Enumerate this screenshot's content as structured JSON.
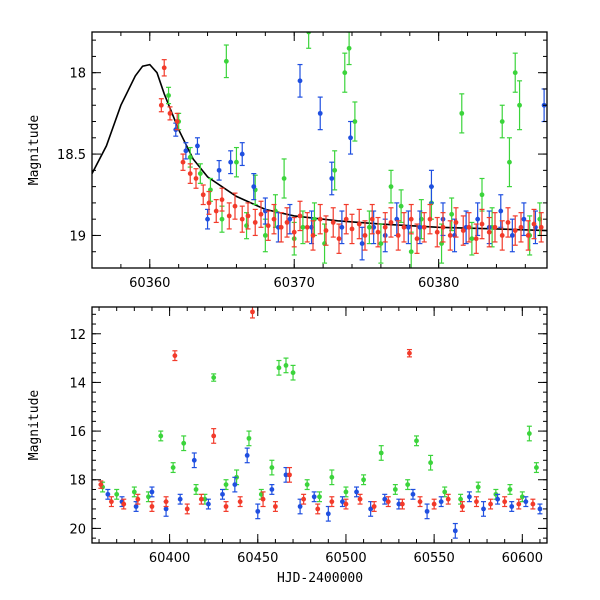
{
  "colors": {
    "green": "#3bd43b",
    "blue": "#1f4fe0",
    "red": "#f23a2a",
    "model": "#000000"
  },
  "chart_data": [
    {
      "type": "scatter",
      "ylabel": "Magnitude",
      "xlabel": "",
      "xlim": [
        60356,
        60387.5
      ],
      "ylim": [
        19.2,
        17.75
      ],
      "y_inverted": true,
      "x_ticks": [
        60360,
        60370,
        60380
      ],
      "y_ticks": [
        18,
        18.5,
        19
      ],
      "x_tick_labels": [
        "60360",
        "60370",
        "60380"
      ],
      "y_tick_labels": [
        "18",
        "18.5",
        "19"
      ],
      "model_curve": {
        "x": [
          60356,
          60357,
          60358,
          60359,
          60359.5,
          60360,
          60360.5,
          60361,
          60362,
          60363,
          60364,
          60366,
          60368,
          60370,
          60373,
          60376,
          60380,
          60384,
          60387.5
        ],
        "y": [
          18.62,
          18.45,
          18.2,
          18.02,
          17.96,
          17.95,
          18.0,
          18.13,
          18.35,
          18.53,
          18.64,
          18.76,
          18.84,
          18.88,
          18.91,
          18.93,
          18.95,
          18.96,
          18.97
        ]
      },
      "series": [
        {
          "color_key": "green",
          "x": [
            60361.3,
            60362,
            60362.8,
            60363.5,
            60364.2,
            60365,
            60365.3,
            60366,
            60366.7,
            60367.3,
            60368,
            60368.7,
            60369.3,
            60370,
            60370.6,
            60371,
            60371.4,
            60372.1,
            60372.8,
            60373.5,
            60373.8,
            60374.2,
            60375.2,
            60376,
            60376.7,
            60377.4,
            60378.1,
            60378.8,
            60379.5,
            60380.2,
            60380.9,
            60381.6,
            60382.3,
            60383,
            60383.7,
            60384.4,
            60384.9,
            60385.3,
            60385.6,
            60386.3,
            60387
          ],
          "y": [
            18.14,
            18.3,
            18.52,
            18.62,
            18.72,
            18.9,
            17.93,
            18.55,
            18.94,
            18.72,
            19.0,
            18.85,
            18.65,
            19.02,
            18.95,
            17.75,
            18.9,
            19.05,
            18.6,
            18.0,
            17.85,
            18.3,
            18.95,
            19.05,
            18.7,
            18.82,
            19.1,
            18.9,
            18.8,
            19.05,
            18.87,
            18.25,
            19.02,
            18.75,
            18.95,
            18.3,
            18.55,
            18.0,
            18.2,
            19.0,
            18.9
          ],
          "err": [
            0.05,
            0.05,
            0.06,
            0.06,
            0.07,
            0.08,
            0.1,
            0.09,
            0.08,
            0.09,
            0.1,
            0.1,
            0.12,
            0.1,
            0.1,
            0.1,
            0.1,
            0.12,
            0.12,
            0.12,
            0.1,
            0.12,
            0.1,
            0.12,
            0.1,
            0.1,
            0.12,
            0.12,
            0.1,
            0.12,
            0.1,
            0.12,
            0.1,
            0.1,
            0.12,
            0.1,
            0.15,
            0.12,
            0.15,
            0.12,
            0.1
          ]
        },
        {
          "color_key": "blue",
          "x": [
            60361.8,
            60362.5,
            60363.3,
            60364,
            60364.8,
            60365.6,
            60366.4,
            60367.2,
            60368,
            60368.9,
            60369.7,
            60370.4,
            60371.2,
            60371.8,
            60372.6,
            60373.3,
            60373.9,
            60374.7,
            60375.5,
            60376.3,
            60377.1,
            60377.9,
            60378.7,
            60379.5,
            60380.3,
            60381.1,
            60381.9,
            60382.7,
            60383.5,
            60384.3,
            60385.1,
            60385.9,
            60386.7,
            60387.3
          ],
          "y": [
            18.35,
            18.48,
            18.45,
            18.9,
            18.6,
            18.55,
            18.5,
            18.7,
            18.85,
            18.95,
            18.9,
            18.05,
            18.95,
            18.25,
            18.65,
            18.95,
            18.4,
            19.05,
            18.95,
            19.0,
            18.9,
            18.95,
            18.95,
            18.7,
            18.9,
            19.0,
            18.95,
            18.9,
            18.95,
            18.85,
            19.0,
            18.9,
            18.95,
            18.2
          ],
          "err": [
            0.04,
            0.05,
            0.05,
            0.06,
            0.06,
            0.07,
            0.07,
            0.08,
            0.08,
            0.09,
            0.09,
            0.1,
            0.1,
            0.1,
            0.1,
            0.1,
            0.1,
            0.1,
            0.1,
            0.1,
            0.1,
            0.1,
            0.1,
            0.1,
            0.1,
            0.1,
            0.1,
            0.1,
            0.1,
            0.1,
            0.1,
            0.1,
            0.1,
            0.1
          ]
        },
        {
          "color_key": "red",
          "x": [
            60360.8,
            60361,
            60361.4,
            60361.9,
            60362.3,
            60362.8,
            60363.2,
            60363.7,
            60364.1,
            60364.6,
            60365,
            60365.5,
            60365.9,
            60366.4,
            60366.8,
            60367.3,
            60367.7,
            60368.2,
            60368.6,
            60369.1,
            60369.5,
            60370,
            60370.4,
            60370.9,
            60371.3,
            60371.8,
            60372.2,
            60372.7,
            60373.1,
            60373.6,
            60374,
            60374.5,
            60374.9,
            60375.4,
            60375.8,
            60376.3,
            60376.7,
            60377.2,
            60377.6,
            60378.1,
            60378.5,
            60379,
            60379.4,
            60379.9,
            60380.3,
            60380.8,
            60381.2,
            60381.7,
            60382.1,
            60382.6,
            60383,
            60383.5,
            60383.9,
            60384.4,
            60384.8,
            60385.3,
            60385.7,
            60386.2,
            60386.6,
            60387.1
          ],
          "y": [
            18.2,
            17.97,
            18.25,
            18.3,
            18.55,
            18.62,
            18.65,
            18.75,
            18.8,
            18.85,
            18.78,
            18.88,
            18.82,
            18.9,
            18.88,
            18.92,
            18.87,
            18.94,
            18.9,
            18.95,
            18.92,
            18.98,
            18.88,
            18.95,
            19.0,
            18.9,
            18.97,
            18.92,
            19.02,
            18.9,
            18.96,
            18.93,
            19.0,
            18.9,
            18.98,
            18.95,
            18.92,
            19.0,
            18.95,
            18.9,
            19.02,
            18.95,
            18.9,
            18.98,
            18.95,
            19.0,
            18.92,
            18.97,
            18.95,
            19.02,
            18.93,
            18.98,
            18.95,
            19.0,
            18.92,
            18.97,
            18.95,
            19.0,
            18.93,
            18.95
          ],
          "err": [
            0.04,
            0.05,
            0.04,
            0.05,
            0.05,
            0.06,
            0.06,
            0.06,
            0.07,
            0.07,
            0.07,
            0.08,
            0.08,
            0.08,
            0.08,
            0.08,
            0.08,
            0.09,
            0.09,
            0.09,
            0.09,
            0.09,
            0.09,
            0.09,
            0.09,
            0.09,
            0.09,
            0.09,
            0.09,
            0.09,
            0.09,
            0.09,
            0.09,
            0.09,
            0.09,
            0.09,
            0.09,
            0.09,
            0.09,
            0.09,
            0.09,
            0.09,
            0.09,
            0.09,
            0.09,
            0.09,
            0.09,
            0.09,
            0.09,
            0.09,
            0.09,
            0.09,
            0.09,
            0.09,
            0.09,
            0.09,
            0.09,
            0.09,
            0.09,
            0.09
          ]
        }
      ]
    },
    {
      "type": "scatter",
      "ylabel": "Magnitude",
      "xlabel": "HJD-2400000",
      "xlim": [
        60356,
        60614
      ],
      "ylim": [
        20.6,
        10.9
      ],
      "y_inverted": true,
      "x_ticks": [
        60400,
        60450,
        60500,
        60550,
        60600
      ],
      "y_ticks": [
        12,
        14,
        16,
        18,
        20
      ],
      "x_tick_labels": [
        "60400",
        "60450",
        "60500",
        "60550",
        "60600"
      ],
      "y_tick_labels": [
        "12",
        "14",
        "16",
        "18",
        "20"
      ],
      "series": [
        {
          "color_key": "green",
          "x": [
            60362,
            60370,
            60380,
            60388,
            60395,
            60402,
            60408,
            60415,
            60420,
            60425,
            60432,
            60438,
            60445,
            60452,
            60458,
            60462,
            60466,
            60470,
            60478,
            60485,
            60492,
            60500,
            60510,
            60520,
            60528,
            60535,
            60540,
            60548,
            60556,
            60565,
            60575,
            60585,
            60593,
            60600,
            60604,
            60608
          ],
          "y": [
            18.3,
            18.6,
            18.5,
            18.7,
            16.2,
            17.5,
            16.5,
            18.4,
            18.8,
            13.8,
            18.2,
            17.9,
            16.3,
            18.6,
            17.5,
            13.4,
            13.3,
            13.6,
            18.2,
            18.7,
            17.9,
            18.5,
            18.0,
            16.9,
            18.4,
            18.2,
            16.4,
            17.3,
            18.5,
            18.8,
            18.3,
            18.6,
            18.4,
            18.7,
            16.1,
            17.5
          ],
          "err": [
            0.2,
            0.2,
            0.2,
            0.2,
            0.2,
            0.2,
            0.3,
            0.2,
            0.2,
            0.15,
            0.2,
            0.3,
            0.3,
            0.2,
            0.3,
            0.3,
            0.3,
            0.3,
            0.2,
            0.2,
            0.3,
            0.2,
            0.2,
            0.3,
            0.2,
            0.2,
            0.2,
            0.3,
            0.2,
            0.2,
            0.2,
            0.2,
            0.2,
            0.2,
            0.3,
            0.2
          ]
        },
        {
          "color_key": "blue",
          "x": [
            60365,
            60373,
            60381,
            60390,
            60398,
            60406,
            60414,
            60422,
            60430,
            60437,
            60444,
            60450,
            60458,
            60466,
            60474,
            60482,
            60490,
            60498,
            60506,
            60514,
            60522,
            60530,
            60538,
            60546,
            60554,
            60562,
            60570,
            60578,
            60586,
            60594,
            60602,
            60610
          ],
          "y": [
            18.6,
            18.9,
            19.1,
            18.5,
            19.2,
            18.8,
            17.2,
            19.0,
            18.6,
            18.2,
            17.0,
            19.3,
            18.4,
            17.8,
            19.1,
            18.7,
            19.4,
            18.9,
            18.5,
            19.2,
            18.8,
            19.0,
            18.6,
            19.3,
            18.9,
            20.1,
            18.7,
            19.2,
            18.8,
            19.1,
            18.9,
            19.2
          ],
          "err": [
            0.2,
            0.2,
            0.2,
            0.2,
            0.3,
            0.2,
            0.3,
            0.2,
            0.2,
            0.3,
            0.3,
            0.3,
            0.2,
            0.3,
            0.3,
            0.2,
            0.3,
            0.2,
            0.2,
            0.3,
            0.2,
            0.2,
            0.2,
            0.3,
            0.2,
            0.3,
            0.2,
            0.3,
            0.2,
            0.2,
            0.2,
            0.2
          ]
        },
        {
          "color_key": "red",
          "x": [
            60361,
            60367,
            60374,
            60382,
            60390,
            60398,
            60403,
            60410,
            60418,
            60425,
            60432,
            60440,
            60447,
            60453,
            60460,
            60468,
            60476,
            60484,
            60492,
            60500,
            60508,
            60516,
            60524,
            60532,
            60536,
            60542,
            60550,
            60558,
            60566,
            60574,
            60582,
            60590,
            60598,
            60606
          ],
          "y": [
            18.2,
            18.9,
            19.0,
            18.8,
            19.1,
            18.9,
            12.9,
            19.2,
            18.8,
            16.2,
            19.1,
            18.9,
            11.1,
            18.8,
            19.1,
            17.8,
            18.8,
            19.2,
            18.9,
            19.0,
            18.8,
            19.1,
            18.9,
            19.0,
            12.8,
            18.9,
            19.0,
            18.8,
            19.1,
            18.9,
            19.0,
            18.9,
            19.0,
            19.0
          ],
          "err": [
            0.15,
            0.2,
            0.2,
            0.2,
            0.2,
            0.2,
            0.2,
            0.2,
            0.2,
            0.3,
            0.2,
            0.2,
            0.25,
            0.3,
            0.2,
            0.3,
            0.2,
            0.2,
            0.2,
            0.2,
            0.2,
            0.2,
            0.2,
            0.2,
            0.15,
            0.2,
            0.2,
            0.2,
            0.2,
            0.2,
            0.2,
            0.2,
            0.2,
            0.2
          ]
        }
      ]
    }
  ]
}
